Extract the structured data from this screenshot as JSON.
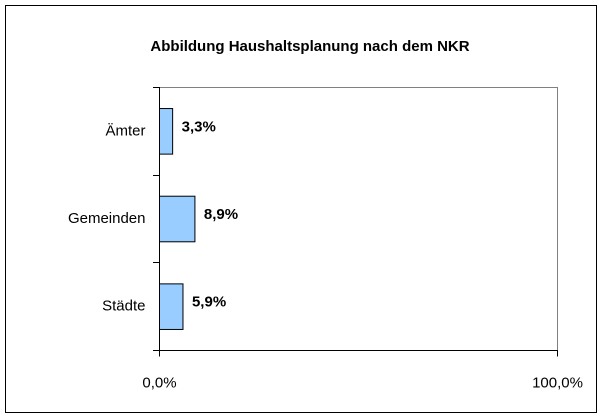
{
  "chart_data": {
    "type": "bar",
    "orientation": "horizontal",
    "title": "Abbildung Haushaltsplanung nach dem NKR",
    "categories": [
      "Ämter",
      "Gemeinden",
      "Städte"
    ],
    "values": [
      3.3,
      8.9,
      5.9
    ],
    "value_labels": [
      "3,3%",
      "8,9%",
      "5,9%"
    ],
    "color": "#99ccff",
    "xlim": [
      0,
      100
    ],
    "xticks": [
      {
        "value": 0,
        "label": "0,0%"
      },
      {
        "value": 100,
        "label": "100,0%"
      }
    ],
    "grid": false
  }
}
